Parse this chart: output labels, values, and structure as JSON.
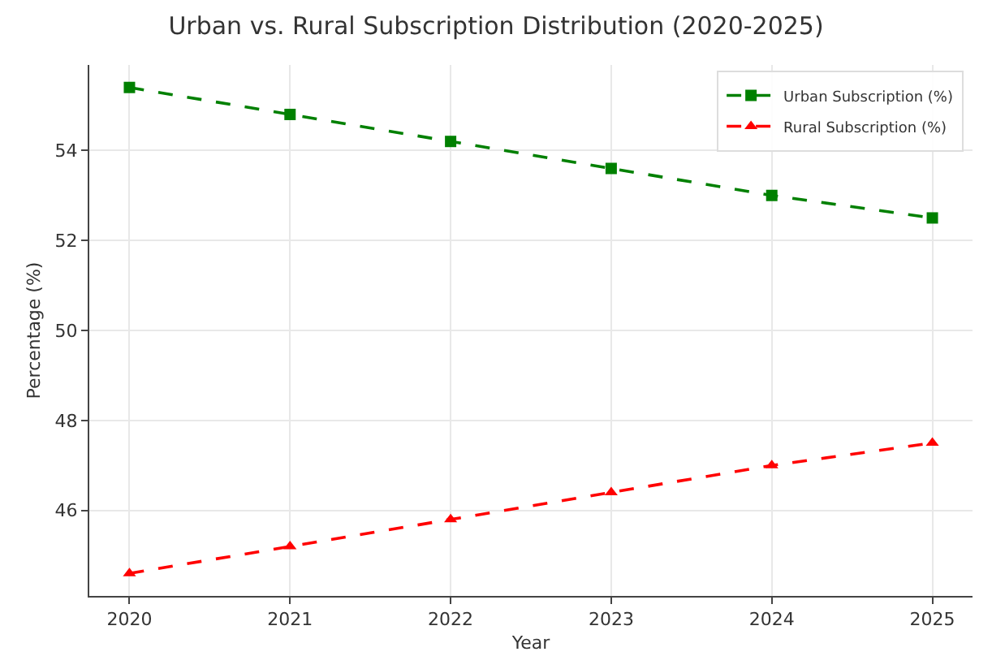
{
  "chart_data": {
    "type": "line",
    "title": "Urban vs. Rural Subscription Distribution (2020-2025)",
    "xlabel": "Year",
    "ylabel": "Percentage (%)",
    "x": [
      2020,
      2021,
      2022,
      2023,
      2024,
      2025
    ],
    "series": [
      {
        "name": "Urban Subscription (%)",
        "color": "#008000",
        "values": [
          55.4,
          54.8,
          54.2,
          53.6,
          53.0,
          52.5
        ],
        "marker": "square",
        "line_style": "dashed"
      },
      {
        "name": "Rural Subscription (%)",
        "color": "#ff0000",
        "values": [
          44.6,
          45.2,
          45.8,
          46.4,
          47.0,
          47.5
        ],
        "marker": "triangle",
        "line_style": "dashed"
      }
    ],
    "xlim": [
      2019.75,
      2025.25
    ],
    "xticks": [
      2020,
      2021,
      2022,
      2023,
      2024,
      2025
    ],
    "ylim": [
      44.1,
      55.9
    ],
    "yticks": [
      46,
      48,
      50,
      52,
      54
    ],
    "grid": true,
    "legend": "top right"
  }
}
